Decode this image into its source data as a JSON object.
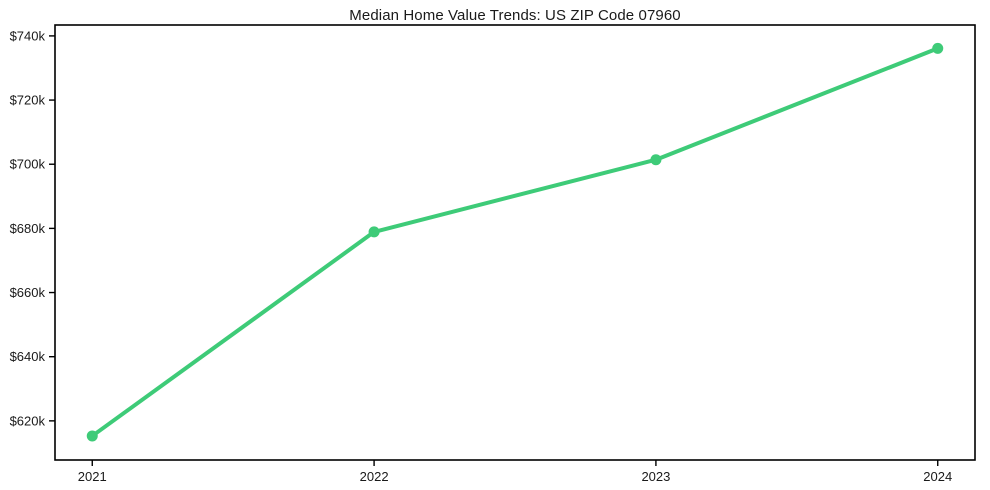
{
  "chart_data": {
    "type": "line",
    "title": "Median Home Value Trends: US ZIP Code 07960",
    "xlabel": "",
    "ylabel": "",
    "categories": [
      "2021",
      "2022",
      "2023",
      "2024"
    ],
    "values": [
      615.3,
      678.9,
      701.4,
      736.1
    ],
    "values_unit": "thousand USD",
    "y_ticks": [
      620,
      640,
      660,
      680,
      700,
      720,
      740
    ],
    "y_tick_labels": [
      "$620k",
      "$640k",
      "$660k",
      "$680k",
      "$700k",
      "$720k",
      "$740k"
    ],
    "ylim": [
      607.8,
      743.4
    ],
    "grid": false,
    "legend": "none",
    "colors": {
      "line": "#3ecb78",
      "marker": "#3ecb78",
      "axis": "#000000",
      "text": "#1a1a1a",
      "background": "#ffffff"
    }
  }
}
